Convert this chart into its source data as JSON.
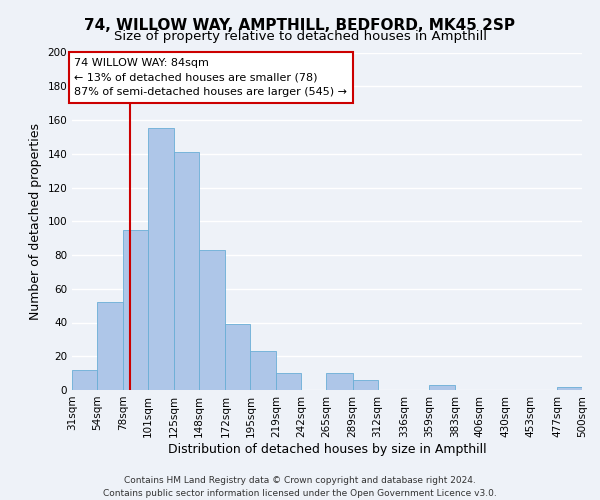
{
  "title": "74, WILLOW WAY, AMPTHILL, BEDFORD, MK45 2SP",
  "subtitle": "Size of property relative to detached houses in Ampthill",
  "xlabel": "Distribution of detached houses by size in Ampthill",
  "ylabel": "Number of detached properties",
  "bin_edges": [
    31,
    54,
    78,
    101,
    125,
    148,
    172,
    195,
    219,
    242,
    265,
    289,
    312,
    336,
    359,
    383,
    406,
    430,
    453,
    477,
    500
  ],
  "bin_labels": [
    "31sqm",
    "54sqm",
    "78sqm",
    "101sqm",
    "125sqm",
    "148sqm",
    "172sqm",
    "195sqm",
    "219sqm",
    "242sqm",
    "265sqm",
    "289sqm",
    "312sqm",
    "336sqm",
    "359sqm",
    "383sqm",
    "406sqm",
    "430sqm",
    "453sqm",
    "477sqm",
    "500sqm"
  ],
  "counts": [
    12,
    52,
    95,
    155,
    141,
    83,
    39,
    23,
    10,
    0,
    10,
    6,
    0,
    0,
    3,
    0,
    0,
    0,
    0,
    2
  ],
  "bar_color": "#aec6e8",
  "bar_edge_color": "#6aaed6",
  "property_line_x": 84,
  "property_line_color": "#cc0000",
  "annotation_line1": "74 WILLOW WAY: 84sqm",
  "annotation_line2": "← 13% of detached houses are smaller (78)",
  "annotation_line3": "87% of semi-detached houses are larger (545) →",
  "annotation_box_color": "#ffffff",
  "annotation_box_edge_color": "#cc0000",
  "ylim": [
    0,
    200
  ],
  "yticks": [
    0,
    20,
    40,
    60,
    80,
    100,
    120,
    140,
    160,
    180,
    200
  ],
  "footer_line1": "Contains HM Land Registry data © Crown copyright and database right 2024.",
  "footer_line2": "Contains public sector information licensed under the Open Government Licence v3.0.",
  "bg_color": "#eef2f8",
  "plot_bg_color": "#eef2f8",
  "grid_color": "#ffffff",
  "title_fontsize": 11,
  "subtitle_fontsize": 9.5,
  "axis_label_fontsize": 9,
  "tick_fontsize": 7.5,
  "annotation_fontsize": 8,
  "footer_fontsize": 6.5
}
